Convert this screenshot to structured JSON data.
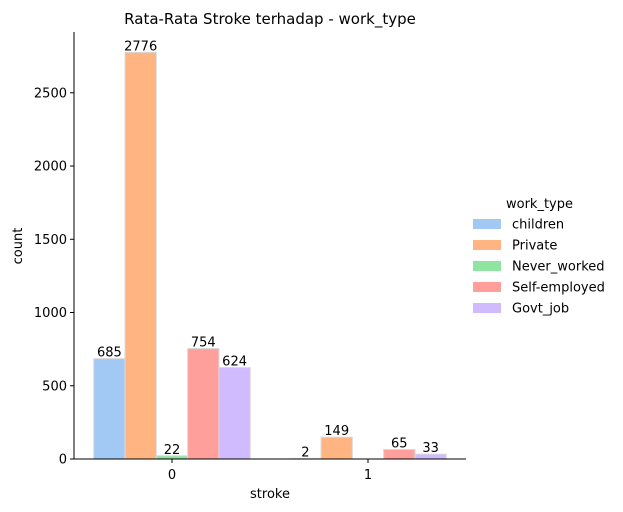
{
  "chart_data": {
    "type": "bar",
    "title": "Rata-Rata Stroke terhadap - work_type",
    "xlabel": "stroke",
    "ylabel": "count",
    "categories": [
      "0",
      "1"
    ],
    "ylim": [
      0,
      2915
    ],
    "yticks": [
      0,
      500,
      1000,
      1500,
      2000,
      2500
    ],
    "legend_title": "work_type",
    "legend_position": "right",
    "grid": false,
    "series": [
      {
        "name": "children",
        "color": "#a1c9f4",
        "values": [
          685,
          2
        ],
        "labels": [
          "685",
          "2"
        ]
      },
      {
        "name": "Private",
        "color": "#ffb482",
        "values": [
          2776,
          149
        ],
        "labels": [
          "2776",
          "149"
        ]
      },
      {
        "name": "Never_worked",
        "color": "#8de5a1",
        "values": [
          22,
          0
        ],
        "labels": [
          "22",
          ""
        ]
      },
      {
        "name": "Self-employed",
        "color": "#ff9f9b",
        "values": [
          754,
          65
        ],
        "labels": [
          "754",
          "65"
        ]
      },
      {
        "name": "Govt_job",
        "color": "#d0bbff",
        "values": [
          624,
          33
        ],
        "labels": [
          "624",
          "33"
        ]
      }
    ]
  }
}
